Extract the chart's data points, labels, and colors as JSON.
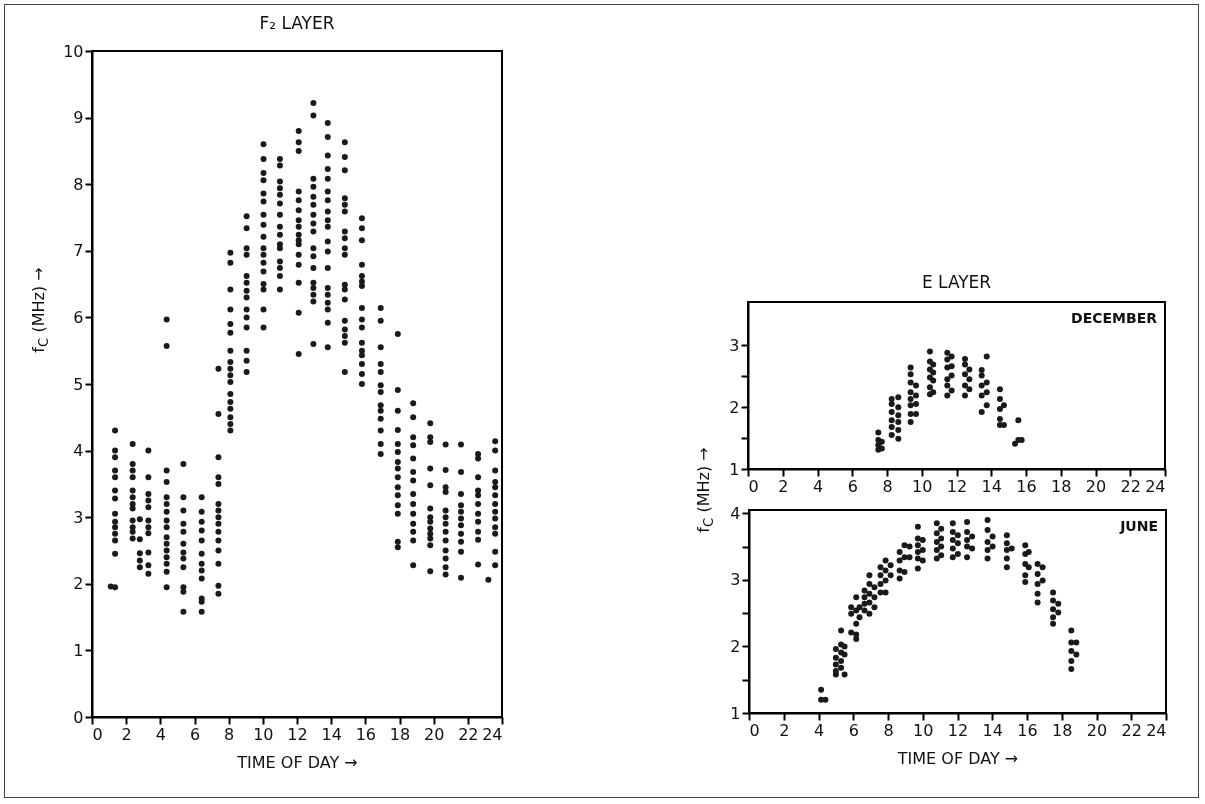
{
  "chart_data": [
    {
      "type": "scatter",
      "title": "F₂ LAYER",
      "xlabel": "TIME OF DAY →",
      "ylabel": "f$_{C}$ (MHz) →",
      "marker": "circle",
      "xlim": [
        0,
        24
      ],
      "ylim": [
        0,
        10
      ],
      "xticks": [
        0,
        2,
        4,
        6,
        8,
        10,
        12,
        14,
        16,
        18,
        20,
        22,
        24
      ],
      "yticks": [
        0,
        1,
        2,
        3,
        4,
        5,
        6,
        7,
        8,
        9,
        10
      ],
      "series": [
        {
          "color": "#1a1a1a",
          "x": [
            1.35,
            1.35,
            1.35,
            1.35,
            1.35,
            1.35,
            1.35,
            1.35,
            1.35,
            1.35,
            1.35,
            1.35,
            1.35,
            1.35,
            1.1,
            2.38,
            2.38,
            2.38,
            2.38,
            2.38,
            2.38,
            2.38,
            2.38,
            2.38,
            2.38,
            2.38,
            2.38,
            2.8,
            2.8,
            2.8,
            2.8,
            2.8,
            3.3,
            3.3,
            3.3,
            3.3,
            3.3,
            3.3,
            3.3,
            3.3,
            3.3,
            3.3,
            3.3,
            4.37,
            4.37,
            4.37,
            4.37,
            4.37,
            4.37,
            4.37,
            4.37,
            4.37,
            4.37,
            4.37,
            4.37,
            4.37,
            4.37,
            4.37,
            4.37,
            5.35,
            5.35,
            5.35,
            5.35,
            5.35,
            5.35,
            5.35,
            5.35,
            5.35,
            5.35,
            5.35,
            5.35,
            6.42,
            6.42,
            6.42,
            6.42,
            6.42,
            6.42,
            6.42,
            6.42,
            6.42,
            6.42,
            6.42,
            6.42,
            7.4,
            7.4,
            7.4,
            7.4,
            7.4,
            7.4,
            7.4,
            7.4,
            7.4,
            7.4,
            7.4,
            7.4,
            7.4,
            7.4,
            7.4,
            8.1,
            8.1,
            8.1,
            8.1,
            8.1,
            8.1,
            8.1,
            8.1,
            8.1,
            8.1,
            8.1,
            8.1,
            8.1,
            8.1,
            8.1,
            8.1,
            8.1,
            9.05,
            9.05,
            9.05,
            9.05,
            9.05,
            9.05,
            9.05,
            9.05,
            9.05,
            9.05,
            9.05,
            9.05,
            9.05,
            9.05,
            10.04,
            10.04,
            10.04,
            10.04,
            10.04,
            10.04,
            10.04,
            10.04,
            10.04,
            10.04,
            10.04,
            10.04,
            10.04,
            10.04,
            10.04,
            10.04,
            10.04,
            11.0,
            11.0,
            11.0,
            11.0,
            11.0,
            11.0,
            11.0,
            11.0,
            11.0,
            11.0,
            11.0,
            11.0,
            11.0,
            11.0,
            11.0,
            12.1,
            12.1,
            12.1,
            12.1,
            12.1,
            12.1,
            12.1,
            12.1,
            12.1,
            12.1,
            12.1,
            12.1,
            12.1,
            12.1,
            12.1,
            12.1,
            12.96,
            12.96,
            12.96,
            12.96,
            12.96,
            12.96,
            12.96,
            12.96,
            12.96,
            12.96,
            12.96,
            12.96,
            12.96,
            12.96,
            12.96,
            12.96,
            12.96,
            13.8,
            13.8,
            13.8,
            13.8,
            13.8,
            13.8,
            13.8,
            13.8,
            13.8,
            13.8,
            13.8,
            13.8,
            13.8,
            13.8,
            13.8,
            13.8,
            13.8,
            13.8,
            13.8,
            14.8,
            14.8,
            14.8,
            14.8,
            14.8,
            14.8,
            14.8,
            14.8,
            14.8,
            14.8,
            14.8,
            14.8,
            14.8,
            14.8,
            14.8,
            14.8,
            14.8,
            14.8,
            15.8,
            15.8,
            15.8,
            15.8,
            15.8,
            15.8,
            15.8,
            15.8,
            15.8,
            15.8,
            15.8,
            15.8,
            15.8,
            15.8,
            15.8,
            15.8,
            16.9,
            16.9,
            16.9,
            16.9,
            16.9,
            16.9,
            16.9,
            16.9,
            16.9,
            16.9,
            16.9,
            16.9,
            16.9,
            17.9,
            17.9,
            17.9,
            17.9,
            17.9,
            17.9,
            17.9,
            17.9,
            17.9,
            17.9,
            17.9,
            17.9,
            17.9,
            17.9,
            17.9,
            18.8,
            18.8,
            18.8,
            18.8,
            18.8,
            18.8,
            18.8,
            18.8,
            18.8,
            18.8,
            18.8,
            18.8,
            18.8,
            18.8,
            19.8,
            19.8,
            19.8,
            19.8,
            19.8,
            19.8,
            19.8,
            19.8,
            19.8,
            19.8,
            19.8,
            19.8,
            19.8,
            20.7,
            20.7,
            20.7,
            20.7,
            20.7,
            20.7,
            20.7,
            20.7,
            20.7,
            20.7,
            20.7,
            20.7,
            20.7,
            21.6,
            21.6,
            21.6,
            21.6,
            21.6,
            21.6,
            21.6,
            21.6,
            21.6,
            21.6,
            21.6,
            22.6,
            22.6,
            22.6,
            22.6,
            22.6,
            22.6,
            22.6,
            22.6,
            22.6,
            22.6,
            22.6,
            23.6,
            23.6,
            23.6,
            23.6,
            23.6,
            23.6,
            23.6,
            23.6,
            23.6,
            23.6,
            23.6,
            23.6,
            23.6,
            23.2
          ],
          "values": [
            4.3,
            4.0,
            3.9,
            3.7,
            3.6,
            3.4,
            3.28,
            3.05,
            2.93,
            2.85,
            2.75,
            2.65,
            2.45,
            1.95,
            1.96,
            4.1,
            3.8,
            3.7,
            3.6,
            3.4,
            3.3,
            3.2,
            3.13,
            2.95,
            2.85,
            2.78,
            2.68,
            2.97,
            2.67,
            2.46,
            2.35,
            2.25,
            4.0,
            3.6,
            3.35,
            3.25,
            3.15,
            2.95,
            2.85,
            2.76,
            2.47,
            2.28,
            2.15,
            5.97,
            5.57,
            3.7,
            3.53,
            3.3,
            3.2,
            3.08,
            2.95,
            2.85,
            2.7,
            2.6,
            2.5,
            2.4,
            2.3,
            2.18,
            1.95,
            3.8,
            3.3,
            3.1,
            2.9,
            2.78,
            2.6,
            2.47,
            2.38,
            2.25,
            1.95,
            1.88,
            1.58,
            3.3,
            3.08,
            2.93,
            2.8,
            2.65,
            2.45,
            2.3,
            2.2,
            2.08,
            1.78,
            1.73,
            1.58,
            5.23,
            4.55,
            3.9,
            3.6,
            3.5,
            3.2,
            3.1,
            3.0,
            2.9,
            2.78,
            2.65,
            2.5,
            2.3,
            1.97,
            1.85,
            6.97,
            6.82,
            6.42,
            6.12,
            5.9,
            5.77,
            5.5,
            5.33,
            5.23,
            5.13,
            5.03,
            4.85,
            4.73,
            4.63,
            4.5,
            4.4,
            4.3,
            7.52,
            7.34,
            7.04,
            6.94,
            6.62,
            6.52,
            6.4,
            6.3,
            6.12,
            6.0,
            5.85,
            5.5,
            5.35,
            5.18,
            8.6,
            8.38,
            8.17,
            8.06,
            7.86,
            7.74,
            7.54,
            7.39,
            7.21,
            7.04,
            6.94,
            6.82,
            6.69,
            6.5,
            6.42,
            6.12,
            5.85,
            8.38,
            8.28,
            8.04,
            7.94,
            7.84,
            7.71,
            7.54,
            7.36,
            7.24,
            7.1,
            7.04,
            6.84,
            6.74,
            6.62,
            6.42,
            8.8,
            8.63,
            8.5,
            7.89,
            7.76,
            7.61,
            7.46,
            7.36,
            7.24,
            7.16,
            7.1,
            6.94,
            6.79,
            6.52,
            6.07,
            5.45,
            9.22,
            9.03,
            8.08,
            7.96,
            7.81,
            7.69,
            7.54,
            7.41,
            7.29,
            7.04,
            6.92,
            6.74,
            6.52,
            6.44,
            6.34,
            6.24,
            5.6,
            8.92,
            8.71,
            8.43,
            8.23,
            8.08,
            7.89,
            7.76,
            7.59,
            7.46,
            7.36,
            7.14,
            6.99,
            6.74,
            6.44,
            6.34,
            6.22,
            6.12,
            5.92,
            5.55,
            8.63,
            8.41,
            8.21,
            7.79,
            7.69,
            7.59,
            7.29,
            7.19,
            7.04,
            6.94,
            6.49,
            6.42,
            6.27,
            5.95,
            5.82,
            5.72,
            5.62,
            5.18,
            7.49,
            7.34,
            7.16,
            6.79,
            6.62,
            6.54,
            6.47,
            6.14,
            5.97,
            5.85,
            5.62,
            5.5,
            5.43,
            5.3,
            5.15,
            5.0,
            6.14,
            5.95,
            5.55,
            5.3,
            5.18,
            4.98,
            4.88,
            4.68,
            4.6,
            4.48,
            4.3,
            4.1,
            3.95,
            5.75,
            4.91,
            4.6,
            4.31,
            4.1,
            3.98,
            3.83,
            3.73,
            3.6,
            3.45,
            3.33,
            3.18,
            3.05,
            2.63,
            2.55,
            4.71,
            4.5,
            4.2,
            4.08,
            3.88,
            3.68,
            3.55,
            3.35,
            3.2,
            3.05,
            2.9,
            2.78,
            2.65,
            2.28,
            4.41,
            4.2,
            4.13,
            3.73,
            3.48,
            3.13,
            3.0,
            2.93,
            2.83,
            2.75,
            2.68,
            2.58,
            2.19,
            4.09,
            3.71,
            3.45,
            3.38,
            3.1,
            3.0,
            2.9,
            2.78,
            2.65,
            2.5,
            2.38,
            2.25,
            2.14,
            4.09,
            3.68,
            3.35,
            3.18,
            3.08,
            2.98,
            2.88,
            2.75,
            2.63,
            2.48,
            2.09,
            3.95,
            3.88,
            3.6,
            3.4,
            3.33,
            3.2,
            3.05,
            2.93,
            2.78,
            2.66,
            2.29,
            4.14,
            4.0,
            3.7,
            3.53,
            3.45,
            3.33,
            3.2,
            3.08,
            2.98,
            2.85,
            2.75,
            2.48,
            2.28,
            2.06
          ]
        }
      ]
    },
    {
      "type": "scatter",
      "title": "E LAYER",
      "ylabel": "f$_{C}$ (MHz) →",
      "annotations": [
        "DECEMBER"
      ],
      "marker": "circle",
      "xlim": [
        0,
        24
      ],
      "ylim": [
        1,
        3.7
      ],
      "xticks": [
        0,
        2,
        4,
        6,
        8,
        10,
        12,
        14,
        16,
        18,
        20,
        22,
        24
      ],
      "yticks": [
        1,
        {
          "value": 1.5,
          "label": null
        },
        2,
        {
          "value": 2.5,
          "label": null
        },
        3
      ],
      "series": [
        {
          "color": "#1a1a1a",
          "x": [
            7.5,
            7.5,
            7.5,
            7.5,
            7.7,
            7.7,
            8.27,
            8.27,
            8.27,
            8.27,
            8.27,
            8.27,
            8.65,
            8.65,
            8.65,
            8.65,
            8.65,
            8.65,
            9.36,
            9.36,
            9.36,
            9.36,
            9.36,
            9.36,
            9.36,
            9.36,
            9.67,
            9.67,
            9.67,
            9.67,
            10.47,
            10.47,
            10.47,
            10.47,
            10.47,
            10.47,
            10.66,
            10.66,
            10.66,
            10.66,
            11.47,
            11.47,
            11.47,
            11.47,
            11.47,
            11.47,
            11.72,
            11.72,
            11.72,
            11.72,
            12.49,
            12.49,
            12.49,
            12.49,
            12.49,
            12.74,
            12.74,
            12.74,
            13.45,
            13.45,
            13.45,
            13.45,
            13.45,
            13.74,
            13.74,
            13.74,
            13.74,
            14.5,
            14.5,
            14.5,
            14.5,
            14.5,
            14.73,
            14.73,
            15.37,
            15.56,
            15.56,
            15.75
          ],
          "values": [
            1.59,
            1.47,
            1.39,
            1.31,
            1.44,
            1.33,
            2.13,
            2.05,
            1.92,
            1.79,
            1.68,
            1.55,
            2.16,
            2.0,
            1.87,
            1.76,
            1.63,
            1.49,
            2.64,
            2.53,
            2.4,
            2.24,
            2.13,
            2.03,
            1.89,
            1.76,
            2.35,
            2.19,
            2.05,
            1.89,
            2.9,
            2.74,
            2.61,
            2.48,
            2.32,
            2.21,
            2.69,
            2.56,
            2.43,
            2.24,
            2.88,
            2.77,
            2.64,
            2.45,
            2.35,
            2.19,
            2.82,
            2.66,
            2.51,
            2.27,
            2.78,
            2.69,
            2.53,
            2.35,
            2.19,
            2.61,
            2.45,
            2.29,
            2.6,
            2.51,
            2.35,
            2.19,
            1.92,
            2.82,
            2.4,
            2.24,
            2.03,
            2.29,
            2.13,
            1.97,
            1.81,
            1.71,
            2.03,
            1.71,
            1.41,
            1.79,
            1.47,
            1.47
          ]
        }
      ]
    },
    {
      "type": "scatter",
      "xlabel": "TIME OF DAY →",
      "annotations": [
        "JUNE"
      ],
      "marker": "circle",
      "xlim": [
        0,
        24
      ],
      "ylim": [
        1,
        4.05
      ],
      "xticks": [
        0,
        2,
        4,
        6,
        8,
        10,
        12,
        14,
        16,
        18,
        20,
        22,
        24
      ],
      "yticks": [
        1,
        {
          "value": 1.5,
          "label": null
        },
        2,
        {
          "value": 2.5,
          "label": null
        },
        3,
        {
          "value": 3.5,
          "label": null
        },
        4
      ],
      "series": [
        {
          "color": "#1a1a1a",
          "x": [
            4.15,
            4.15,
            4.4,
            5.0,
            5.0,
            5.0,
            5.0,
            5.0,
            5.3,
            5.3,
            5.3,
            5.3,
            5.3,
            5.5,
            5.5,
            5.5,
            5.88,
            5.88,
            5.88,
            6.17,
            6.17,
            6.17,
            6.17,
            6.17,
            6.36,
            6.36,
            6.65,
            6.65,
            6.65,
            6.65,
            6.93,
            6.93,
            6.93,
            6.93,
            6.93,
            7.22,
            7.22,
            7.22,
            7.57,
            7.57,
            7.57,
            7.57,
            7.86,
            7.86,
            7.86,
            7.86,
            8.15,
            8.15,
            8.67,
            8.67,
            8.67,
            8.67,
            8.95,
            8.95,
            8.95,
            9.24,
            9.24,
            9.72,
            9.72,
            9.72,
            9.72,
            9.72,
            9.72,
            10.0,
            10.0,
            10.0,
            10.81,
            10.81,
            10.81,
            10.81,
            10.81,
            11.06,
            11.06,
            11.06,
            11.06,
            11.73,
            11.73,
            11.73,
            11.73,
            11.73,
            12.02,
            12.02,
            12.02,
            12.55,
            12.55,
            12.55,
            12.55,
            12.55,
            12.84,
            12.84,
            13.73,
            13.73,
            13.73,
            13.73,
            13.73,
            14.02,
            14.02,
            14.84,
            14.84,
            14.84,
            14.84,
            14.84,
            15.12,
            15.9,
            15.9,
            15.9,
            15.9,
            15.9,
            16.1,
            16.1,
            16.61,
            16.61,
            16.61,
            16.61,
            16.61,
            16.9,
            16.9,
            17.5,
            17.5,
            17.5,
            17.5,
            17.5,
            17.8,
            17.8,
            18.55,
            18.55,
            18.55,
            18.55,
            18.55,
            18.84,
            18.84
          ],
          "values": [
            1.35,
            1.2,
            1.2,
            1.96,
            1.83,
            1.73,
            1.63,
            1.58,
            2.24,
            2.03,
            1.91,
            1.78,
            1.68,
            2.0,
            1.88,
            1.58,
            2.59,
            2.49,
            2.21,
            2.74,
            2.54,
            2.34,
            2.18,
            2.11,
            2.59,
            2.44,
            2.84,
            2.74,
            2.64,
            2.54,
            3.07,
            2.94,
            2.79,
            2.66,
            2.49,
            2.89,
            2.74,
            2.59,
            3.19,
            3.07,
            2.94,
            2.81,
            3.29,
            3.14,
            2.99,
            2.81,
            3.22,
            3.07,
            3.42,
            3.29,
            3.14,
            3.02,
            3.52,
            3.34,
            3.12,
            3.5,
            3.34,
            3.8,
            3.62,
            3.52,
            3.42,
            3.32,
            3.17,
            3.6,
            3.45,
            3.29,
            3.85,
            3.7,
            3.57,
            3.45,
            3.32,
            3.77,
            3.62,
            3.5,
            3.37,
            3.85,
            3.72,
            3.6,
            3.47,
            3.34,
            3.67,
            3.55,
            3.39,
            3.87,
            3.72,
            3.6,
            3.5,
            3.34,
            3.65,
            3.47,
            3.9,
            3.75,
            3.57,
            3.45,
            3.32,
            3.65,
            3.5,
            3.67,
            3.55,
            3.45,
            3.32,
            3.19,
            3.47,
            3.52,
            3.39,
            3.24,
            3.07,
            2.97,
            3.42,
            3.19,
            3.24,
            3.09,
            2.94,
            2.79,
            2.66,
            3.19,
            2.99,
            2.81,
            2.69,
            2.56,
            2.44,
            2.34,
            2.64,
            2.51,
            2.24,
            2.06,
            1.93,
            1.78,
            1.66,
            2.06,
            1.88
          ]
        }
      ]
    }
  ]
}
